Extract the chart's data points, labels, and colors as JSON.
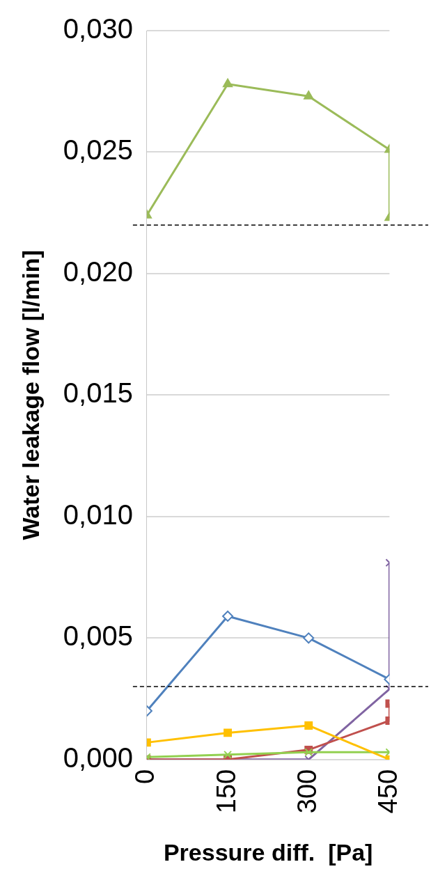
{
  "chart_data": {
    "type": "line",
    "xlabel": "Pressure diff.  [Pa]",
    "ylabel": "Water leakage flow [l/min]",
    "xlim": [
      0,
      450
    ],
    "xticks": [
      0,
      150,
      300,
      450
    ],
    "ylim": [
      0,
      0.03
    ],
    "yticks": [
      {
        "value": 0,
        "label": "0,000"
      },
      {
        "value": 0.005,
        "label": "0,005"
      },
      {
        "value": 0.01,
        "label": "0,010"
      },
      {
        "value": 0.015,
        "label": "0,015"
      },
      {
        "value": 0.02,
        "label": "0,020"
      },
      {
        "value": 0.025,
        "label": "0,025"
      },
      {
        "value": 0.03,
        "label": "0,030"
      }
    ],
    "grid": true,
    "legend": false,
    "series": [
      {
        "color": "#9bbb59",
        "marker": "triangle",
        "x": [
          0,
          150,
          300,
          450,
          450
        ],
        "values": [
          0.0224,
          0.0278,
          0.0273,
          0.0251,
          0.0223
        ]
      },
      {
        "color": "#4f81bd",
        "marker": "diamond",
        "x": [
          0,
          150,
          300,
          450
        ],
        "values": [
          0.002,
          0.0059,
          0.005,
          0.0033
        ]
      },
      {
        "color": "#ffc000",
        "marker": "square",
        "x": [
          0,
          150,
          300,
          450
        ],
        "values": [
          0.0007,
          0.0011,
          0.0014,
          0
        ]
      },
      {
        "color": "#92d050",
        "marker": "cross",
        "x": [
          0,
          150,
          300,
          450
        ],
        "values": [
          0.0001,
          0.0002,
          0.0003,
          0.0003
        ]
      },
      {
        "color": "#c0504d",
        "marker": "square",
        "x": [
          0,
          150,
          300,
          450,
          450
        ],
        "values": [
          0,
          0,
          0.0004,
          0.0016,
          0.0023
        ]
      },
      {
        "color": "#8064a2",
        "marker": "cross",
        "x": [
          0,
          150,
          300,
          450,
          450
        ],
        "values": [
          0,
          0,
          0,
          0.0029,
          0.0081
        ]
      }
    ],
    "ref_lines": [
      {
        "axis": "y",
        "value": 0.022,
        "color": "#000000",
        "line_style": "dashed"
      },
      {
        "axis": "y",
        "value": 0.003,
        "color": "#000000",
        "line_style": "dashed"
      }
    ]
  }
}
